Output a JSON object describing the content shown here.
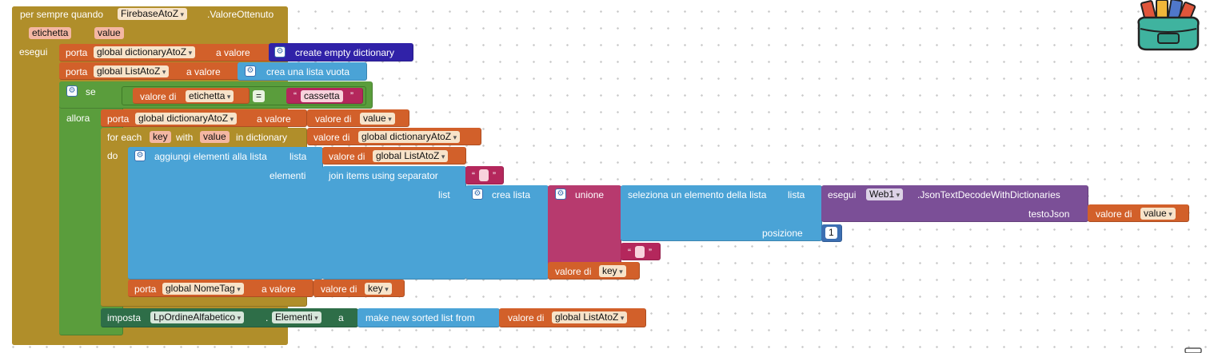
{
  "event": {
    "header": "per sempre quando",
    "component": "FirebaseAtoZ",
    "event_name": ".ValoreOttenuto",
    "param1": "etichetta",
    "param2": "value",
    "do_label": "esegui"
  },
  "set1": {
    "porta": "porta",
    "var": "global dictionaryAtoZ",
    "a_valore": "a valore",
    "value_block": "create empty dictionary"
  },
  "set2": {
    "porta": "porta",
    "var": "global ListAtoZ",
    "a_valore": "a valore",
    "value_block": "crea una lista vuota"
  },
  "if_block": {
    "se": "se",
    "valore_di": "valore di",
    "var": "etichetta",
    "op": "=",
    "text": "cassetta",
    "allora": "allora"
  },
  "set3": {
    "porta": "porta",
    "var": "global dictionaryAtoZ",
    "a_valore": "a valore",
    "valore_di": "valore di",
    "val_var": "value"
  },
  "foreach": {
    "for_each": "for each",
    "key": "key",
    "with": "with",
    "value": "value",
    "in_dict": "in dictionary",
    "valore_di": "valore di",
    "dict_var": "global dictionaryAtoZ",
    "do": "do"
  },
  "add_items": {
    "label": "aggiungi elementi alla lista",
    "lista": "lista",
    "valore_di": "valore di",
    "list_var": "global ListAtoZ",
    "elementi": "elementi"
  },
  "join": {
    "label": "join items using separator",
    "sep": "",
    "list": "list"
  },
  "crea_lista": {
    "label": "crea lista"
  },
  "unione": {
    "label": "unione"
  },
  "seleziona": {
    "label": "seleziona un elemento della lista",
    "lista": "lista",
    "posizione": "posizione",
    "pos_value": "1"
  },
  "call": {
    "esegui": "esegui",
    "component": "Web1",
    "method": ".JsonTextDecodeWithDictionaries",
    "arg": "testoJson",
    "valore_di": "valore di",
    "arg_var": "value"
  },
  "empty_text": "",
  "valore_key": {
    "valore_di": "valore di",
    "var": "key"
  },
  "set4": {
    "porta": "porta",
    "var": "global NomeTag",
    "a_valore": "a valore",
    "valore_di": "valore di",
    "val_var": "key"
  },
  "imposta": {
    "imposta": "imposta",
    "component": "LpOrdineAlfabetico",
    "dot": ".",
    "prop": "Elementi",
    "a": "a",
    "sorted": "make new sorted list from",
    "valore_di": "valore di",
    "list_var": "global ListAtoZ"
  },
  "colors": {
    "event": "#b08e2a",
    "variable": "#d2602a",
    "control": "#5a9d3c",
    "list": "#4aa3d6",
    "dictionary": "#3022a8",
    "text": "#b4275c",
    "component_method": "#7b4f97",
    "component_setter": "#2e6e48",
    "math": "#3c6fb2"
  },
  "icons": [
    "gear-icon",
    "backpack-icon",
    "trash-icon"
  ]
}
